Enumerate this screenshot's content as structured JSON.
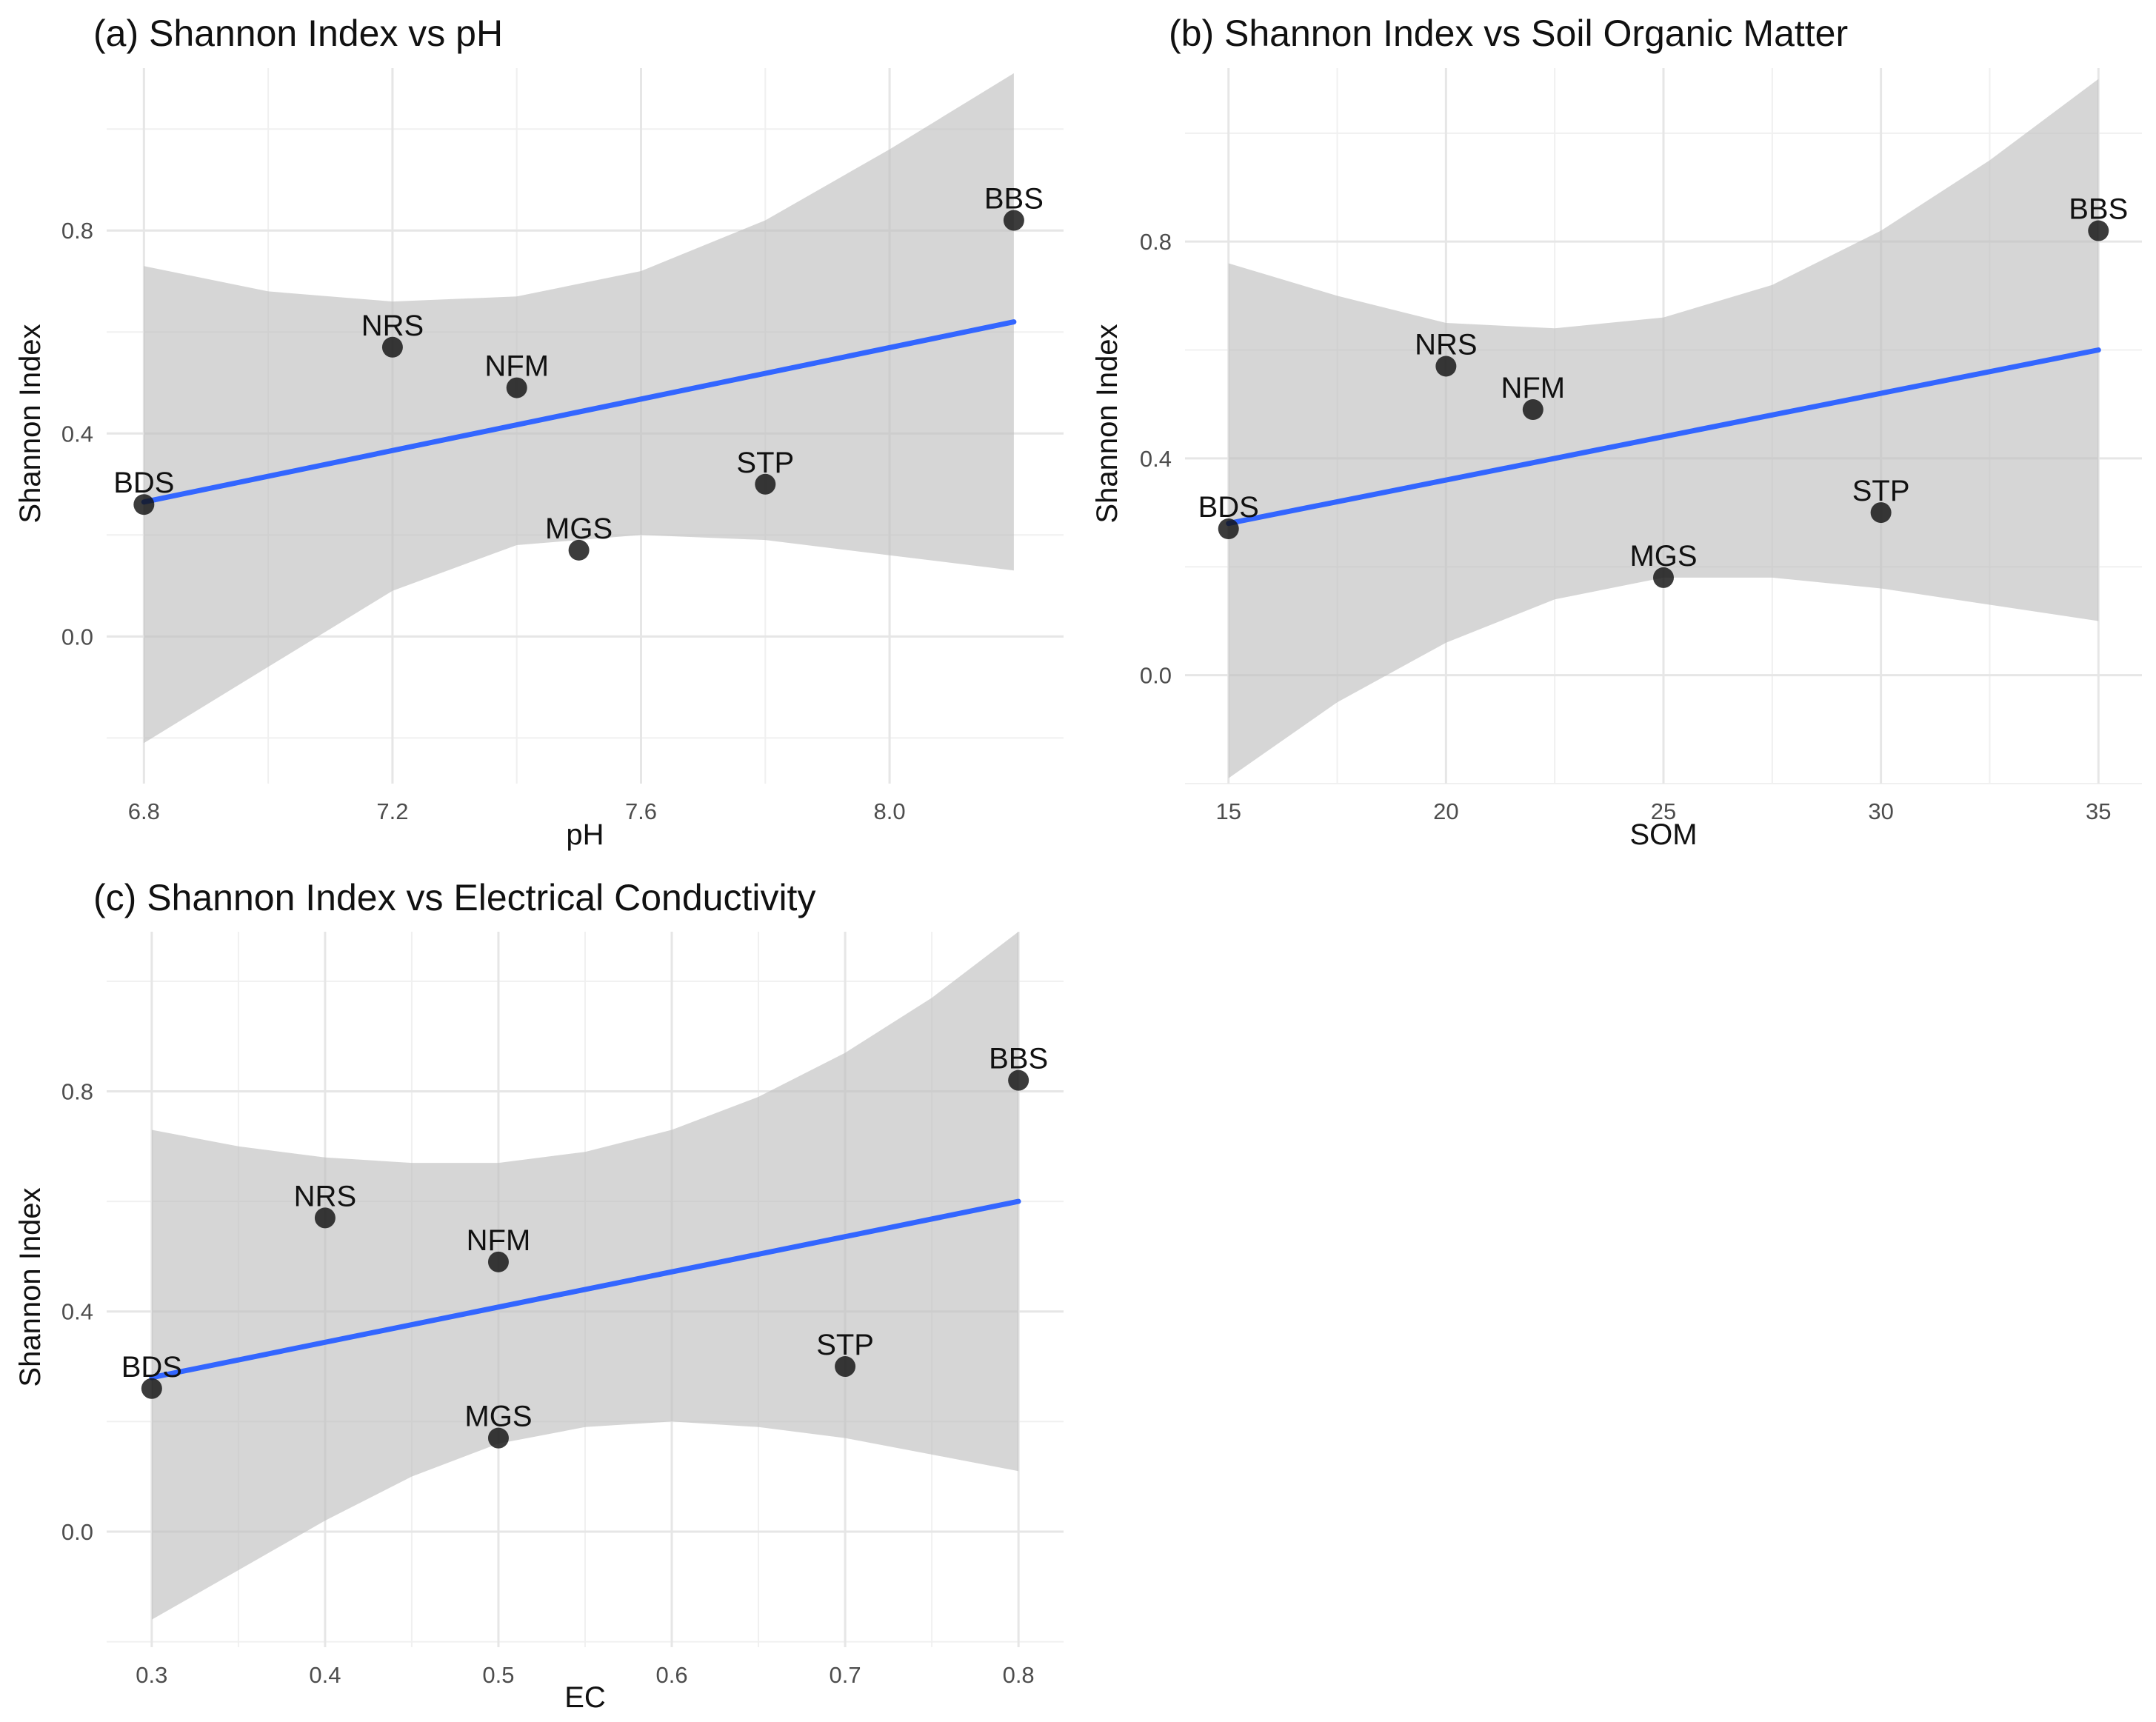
{
  "chart_data": [
    {
      "type": "scatter",
      "title": "(a) Shannon Index vs pH",
      "xlabel": "pH",
      "ylabel": "Shannon Index",
      "xlim": [
        6.74,
        8.28
      ],
      "ylim": [
        -0.29,
        1.12
      ],
      "xticks": [
        6.8,
        7.2,
        7.6,
        8.0
      ],
      "xtick_labels": [
        "6.8",
        "7.2",
        "7.6",
        "8.0"
      ],
      "xminor": [
        7.0,
        7.4,
        7.8
      ],
      "yticks": [
        0.0,
        0.4,
        0.8
      ],
      "ytick_labels": [
        "0.0",
        "0.4",
        "0.8"
      ],
      "yminor": [
        -0.2,
        0.2,
        0.6,
        1.0
      ],
      "grid": true,
      "points": [
        {
          "label": "BDS",
          "x": 6.8,
          "y": 0.26
        },
        {
          "label": "NRS",
          "x": 7.2,
          "y": 0.57
        },
        {
          "label": "NFM",
          "x": 7.4,
          "y": 0.49
        },
        {
          "label": "MGS",
          "x": 7.5,
          "y": 0.17
        },
        {
          "label": "STP",
          "x": 7.8,
          "y": 0.3
        },
        {
          "label": "BBS",
          "x": 8.2,
          "y": 0.82
        }
      ],
      "fit": {
        "x": [
          6.8,
          8.2
        ],
        "y": [
          0.265,
          0.62
        ]
      },
      "ribbon": {
        "x": [
          6.8,
          7.0,
          7.2,
          7.4,
          7.6,
          7.8,
          8.0,
          8.2
        ],
        "upper": [
          0.73,
          0.68,
          0.66,
          0.67,
          0.72,
          0.82,
          0.96,
          1.11
        ],
        "lower": [
          -0.21,
          -0.06,
          0.09,
          0.18,
          0.2,
          0.19,
          0.16,
          0.13
        ]
      }
    },
    {
      "type": "scatter",
      "title": "(b) Shannon Index vs Soil Organic Matter",
      "xlabel": "SOM",
      "ylabel": "Shannon Index",
      "xlim": [
        14.0,
        36.0
      ],
      "ylim": [
        -0.2,
        1.12
      ],
      "xticks": [
        15,
        20,
        25,
        30,
        35
      ],
      "xtick_labels": [
        "15",
        "20",
        "25",
        "30",
        "35"
      ],
      "xminor": [
        17.5,
        22.5,
        27.5,
        32.5
      ],
      "yticks": [
        0.0,
        0.4,
        0.8
      ],
      "ytick_labels": [
        "0.0",
        "0.4",
        "0.8"
      ],
      "yminor": [
        -0.2,
        0.2,
        0.6,
        1.0
      ],
      "grid": true,
      "points": [
        {
          "label": "BDS",
          "x": 15,
          "y": 0.27
        },
        {
          "label": "NRS",
          "x": 20,
          "y": 0.57
        },
        {
          "label": "NFM",
          "x": 22,
          "y": 0.49
        },
        {
          "label": "MGS",
          "x": 25,
          "y": 0.18
        },
        {
          "label": "STP",
          "x": 30,
          "y": 0.3
        },
        {
          "label": "BBS",
          "x": 35,
          "y": 0.82
        }
      ],
      "fit": {
        "x": [
          15,
          35
        ],
        "y": [
          0.28,
          0.6
        ]
      },
      "ribbon": {
        "x": [
          15,
          17.5,
          20,
          22.5,
          25,
          27.5,
          30,
          32.5,
          35
        ],
        "upper": [
          0.76,
          0.7,
          0.65,
          0.64,
          0.66,
          0.72,
          0.82,
          0.95,
          1.1
        ],
        "lower": [
          -0.19,
          -0.05,
          0.06,
          0.14,
          0.18,
          0.18,
          0.16,
          0.13,
          0.1
        ]
      }
    },
    {
      "type": "scatter",
      "title": "(c) Shannon Index vs Electrical Conductivity",
      "xlabel": "EC",
      "ylabel": "Shannon Index",
      "xlim": [
        0.274,
        0.826
      ],
      "ylim": [
        -0.21,
        1.09
      ],
      "xticks": [
        0.3,
        0.4,
        0.5,
        0.6,
        0.7,
        0.8
      ],
      "xtick_labels": [
        "0.3",
        "0.4",
        "0.5",
        "0.6",
        "0.7",
        "0.8"
      ],
      "xminor": [
        0.35,
        0.45,
        0.55,
        0.65,
        0.75
      ],
      "yticks": [
        0.0,
        0.4,
        0.8
      ],
      "ytick_labels": [
        "0.0",
        "0.4",
        "0.8"
      ],
      "yminor": [
        -0.2,
        0.2,
        0.6,
        1.0
      ],
      "grid": true,
      "points": [
        {
          "label": "BDS",
          "x": 0.3,
          "y": 0.26
        },
        {
          "label": "NRS",
          "x": 0.4,
          "y": 0.57
        },
        {
          "label": "NFM",
          "x": 0.5,
          "y": 0.49
        },
        {
          "label": "MGS",
          "x": 0.5,
          "y": 0.17
        },
        {
          "label": "STP",
          "x": 0.7,
          "y": 0.3
        },
        {
          "label": "BBS",
          "x": 0.8,
          "y": 0.82
        }
      ],
      "fit": {
        "x": [
          0.3,
          0.8
        ],
        "y": [
          0.28,
          0.6
        ]
      },
      "ribbon": {
        "x": [
          0.3,
          0.35,
          0.4,
          0.45,
          0.5,
          0.55,
          0.6,
          0.65,
          0.7,
          0.75,
          0.8
        ],
        "upper": [
          0.73,
          0.7,
          0.68,
          0.67,
          0.67,
          0.69,
          0.73,
          0.79,
          0.87,
          0.97,
          1.09
        ],
        "lower": [
          -0.16,
          -0.07,
          0.02,
          0.1,
          0.16,
          0.19,
          0.2,
          0.19,
          0.17,
          0.14,
          0.11
        ]
      }
    }
  ]
}
